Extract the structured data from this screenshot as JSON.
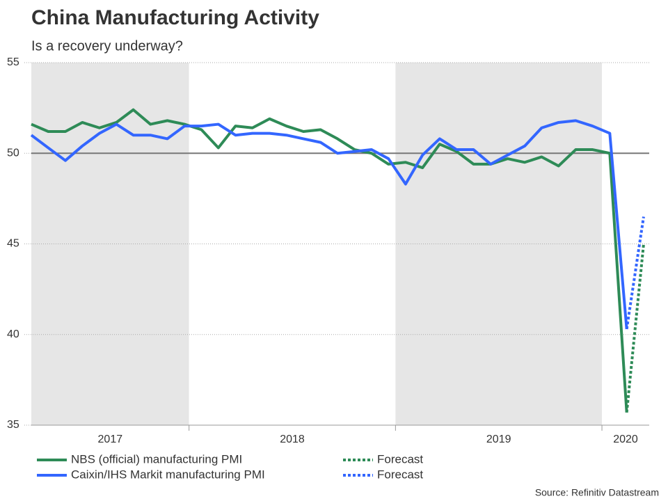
{
  "chart_data": {
    "type": "line",
    "title": "China Manufacturing Activity",
    "subtitle": "Is a recovery underway?",
    "source": "Source: Refinitiv Datastream",
    "x": [
      2017.236,
      2017.318,
      2017.401,
      2017.483,
      2017.566,
      2017.648,
      2017.73,
      2017.813,
      2017.895,
      2017.978,
      2018.06,
      2018.142,
      2018.225,
      2018.307,
      2018.39,
      2018.472,
      2018.554,
      2018.637,
      2018.719,
      2018.802,
      2018.884,
      2018.966,
      2019.049,
      2019.131,
      2019.214,
      2019.296,
      2019.378,
      2019.461,
      2019.543,
      2019.626,
      2019.708,
      2019.79,
      2019.873,
      2019.955,
      2020.038,
      2020.12,
      2020.202
    ],
    "xlim": [
      2017.236,
      2020.229
    ],
    "xticks": [
      2018,
      2019,
      2020
    ],
    "years": [
      "2017",
      "2018",
      "2019",
      "2020"
    ],
    "band_colors": [
      "#e6e6e6",
      "#ffffff",
      "#e6e6e6",
      "#ffffff"
    ],
    "ylim": [
      35,
      55
    ],
    "yticks": [
      35,
      40,
      45,
      50,
      55
    ],
    "grid": true,
    "reference_line": 50,
    "series": [
      {
        "name": "NBS (official) manufacturing PMI",
        "color": "#2e8b57",
        "style": "solid",
        "values": [
          51.6,
          51.2,
          51.2,
          51.7,
          51.4,
          51.7,
          52.4,
          51.6,
          51.8,
          51.6,
          51.3,
          50.3,
          51.5,
          51.4,
          51.9,
          51.5,
          51.2,
          51.3,
          50.8,
          50.2,
          50.0,
          49.4,
          49.5,
          49.2,
          50.5,
          50.1,
          49.4,
          49.4,
          49.7,
          49.5,
          49.8,
          49.3,
          50.2,
          50.2,
          50.0,
          35.7,
          null
        ]
      },
      {
        "name": "Caixin/IHS Markit manufacturing PMI",
        "color": "#3366ff",
        "style": "solid",
        "values": [
          51.0,
          50.3,
          49.6,
          50.4,
          51.1,
          51.6,
          51.0,
          51.0,
          50.8,
          51.5,
          51.5,
          51.6,
          51.0,
          51.1,
          51.1,
          51.0,
          50.8,
          50.6,
          50.0,
          50.1,
          50.2,
          49.7,
          48.3,
          49.9,
          50.8,
          50.2,
          50.2,
          49.4,
          49.9,
          50.4,
          51.4,
          51.7,
          51.8,
          51.5,
          51.1,
          40.3,
          null
        ]
      },
      {
        "name": "Forecast",
        "color": "#2e8b57",
        "style": "dotted",
        "values": [
          null,
          null,
          null,
          null,
          null,
          null,
          null,
          null,
          null,
          null,
          null,
          null,
          null,
          null,
          null,
          null,
          null,
          null,
          null,
          null,
          null,
          null,
          null,
          null,
          null,
          null,
          null,
          null,
          null,
          null,
          null,
          null,
          null,
          null,
          null,
          35.7,
          45.0
        ]
      },
      {
        "name": "Forecast",
        "color": "#3366ff",
        "style": "dotted",
        "values": [
          null,
          null,
          null,
          null,
          null,
          null,
          null,
          null,
          null,
          null,
          null,
          null,
          null,
          null,
          null,
          null,
          null,
          null,
          null,
          null,
          null,
          null,
          null,
          null,
          null,
          null,
          null,
          null,
          null,
          null,
          null,
          null,
          null,
          null,
          null,
          40.3,
          46.5
        ]
      }
    ]
  }
}
